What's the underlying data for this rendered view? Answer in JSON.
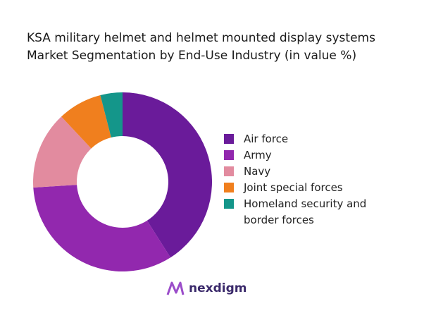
{
  "chart_data": {
    "type": "donut",
    "title": "KSA military helmet and helmet mounted display systems Market Segmentation by End-Use Industry (in value %)",
    "categories": [
      "Air force",
      "Army",
      "Navy",
      "Joint special forces",
      "Homeland security and border forces"
    ],
    "values": [
      41,
      33,
      14,
      8,
      4
    ],
    "colors": [
      "#6a1b9a",
      "#9228ae",
      "#e28b9f",
      "#f07f1e",
      "#14968a"
    ]
  },
  "logo_text": "nexdigm"
}
